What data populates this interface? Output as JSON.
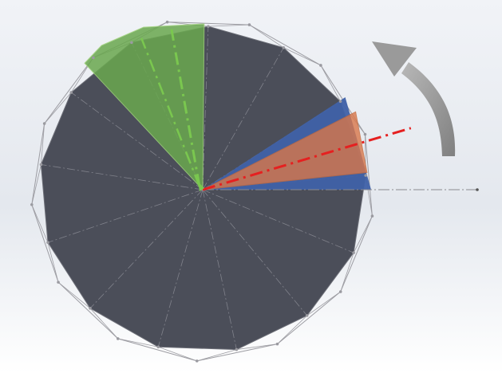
{
  "scene": {
    "kind": "cad-polygon-segment-diagram",
    "background_colors": {
      "top": "#f1f3f7",
      "middle": "#e4e8ee",
      "bottom": "#ffffff"
    },
    "polygon": {
      "sides": 13,
      "fill_color": "#4b4e59",
      "construction_line_color": "#9c9ca2",
      "vertex_marker_color": "#9a9aa0"
    },
    "highlighted_sectors": [
      {
        "name": "green-sector",
        "color": "#6aa84f",
        "opacity": 0.85,
        "center_line_color": "#7ac74f"
      },
      {
        "name": "blue-sector",
        "color": "#3f61a8",
        "opacity": 0.95
      },
      {
        "name": "orange-sector",
        "color": "#d9774a",
        "opacity": 0.8,
        "center_line_color": "#e52020"
      }
    ],
    "reference_axis": {
      "direction": "horizontal",
      "color": "#8a8a90"
    },
    "rotation_arrow": {
      "direction": "counter-clockwise",
      "color": "#8f8f8f"
    }
  }
}
